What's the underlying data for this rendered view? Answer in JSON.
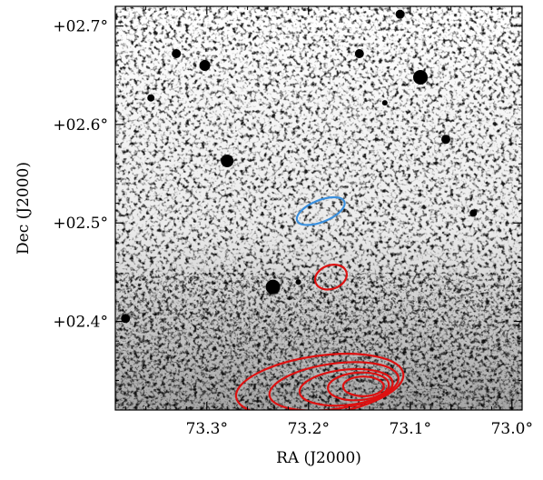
{
  "chart_data": {
    "type": "heatmap",
    "colormap": "gray_r",
    "xlabel": "RA (J2000)",
    "ylabel": "Dec (J2000)",
    "x_ticks": [
      {
        "value": 73.3,
        "label": "73.3°"
      },
      {
        "value": 73.2,
        "label": "73.2°"
      },
      {
        "value": 73.1,
        "label": "73.1°"
      },
      {
        "value": 73.0,
        "label": "73.0°"
      }
    ],
    "y_ticks": [
      {
        "value": 2.7,
        "label": "+02.7°"
      },
      {
        "value": 2.6,
        "label": "+02.6°"
      },
      {
        "value": 2.5,
        "label": "+02.5°"
      },
      {
        "value": 2.4,
        "label": "+02.4°"
      }
    ],
    "xlim": [
      73.39,
      72.99
    ],
    "ylim": [
      2.31,
      2.72
    ],
    "colors": {
      "red_contours": "#dd1111",
      "blue_contour": "#3a8fdd",
      "axes": "#000000"
    },
    "sources": [
      {
        "ra": 73.28,
        "dec": 2.563,
        "size": 7
      },
      {
        "ra": 73.235,
        "dec": 2.435,
        "size": 8
      },
      {
        "ra": 73.09,
        "dec": 2.648,
        "size": 8
      },
      {
        "ra": 73.302,
        "dec": 2.66,
        "size": 6
      },
      {
        "ra": 73.065,
        "dec": 2.585,
        "size": 5
      },
      {
        "ra": 73.15,
        "dec": 2.672,
        "size": 5
      },
      {
        "ra": 73.33,
        "dec": 2.672,
        "size": 5
      },
      {
        "ra": 73.11,
        "dec": 2.712,
        "size": 5
      },
      {
        "ra": 73.38,
        "dec": 2.403,
        "size": 5
      },
      {
        "ra": 73.355,
        "dec": 2.627,
        "size": 4
      },
      {
        "ra": 73.038,
        "dec": 2.51,
        "size": 4
      },
      {
        "ra": 73.125,
        "dec": 2.622,
        "size": 3
      },
      {
        "ra": 73.21,
        "dec": 2.44,
        "size": 3
      }
    ],
    "contours": [
      {
        "color": "red",
        "center": [
          73.178,
          2.445
        ],
        "semi_axes": [
          0.016,
          0.012
        ],
        "angle": -20
      },
      {
        "color": "red",
        "center": [
          73.189,
          2.335
        ],
        "semi_axes": [
          0.083,
          0.03
        ],
        "angle": -8
      },
      {
        "color": "red",
        "center": [
          73.175,
          2.334
        ],
        "semi_axes": [
          0.064,
          0.023
        ],
        "angle": -8
      },
      {
        "color": "red",
        "center": [
          73.163,
          2.333
        ],
        "semi_axes": [
          0.046,
          0.018
        ],
        "angle": -6
      },
      {
        "color": "red",
        "center": [
          73.151,
          2.334
        ],
        "semi_axes": [
          0.03,
          0.014
        ],
        "angle": -4
      },
      {
        "color": "red",
        "center": [
          73.146,
          2.334
        ],
        "semi_axes": [
          0.02,
          0.01
        ],
        "angle": 0
      },
      {
        "color": "blue",
        "center": [
          73.188,
          2.512
        ],
        "semi_axes": [
          0.025,
          0.011
        ],
        "angle": -22
      }
    ]
  }
}
